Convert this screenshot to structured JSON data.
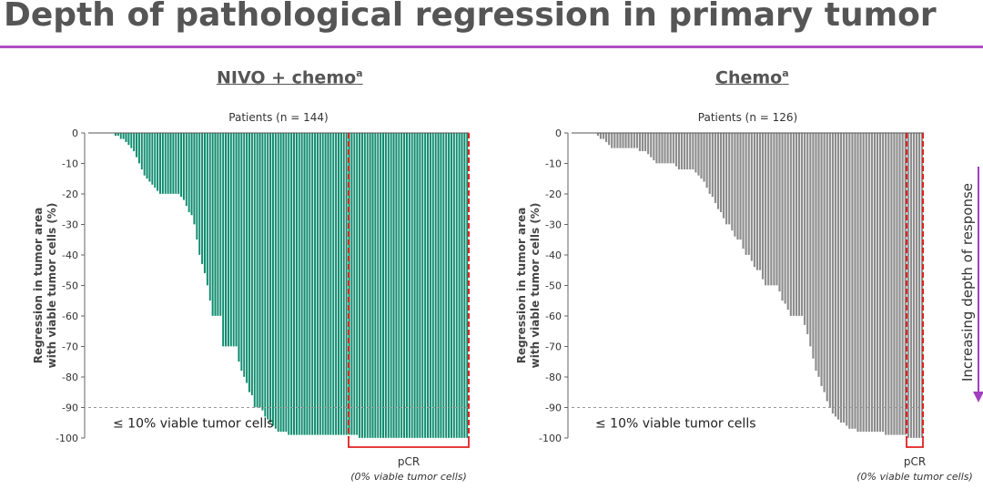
{
  "page_title": "Depth of pathological regression in primary tumor",
  "side_arrow_label": "Increasing depth of response",
  "colors": {
    "accent_rule": "#b04fc4",
    "nivo_bar": "#0e8c6e",
    "chemo_bar": "#8c8c8c",
    "pcr_box": "#e02020",
    "arrow": "#a23fbf"
  },
  "chart_data": [
    {
      "type": "bar",
      "title": "NIVO + chemo",
      "title_superscript": "a",
      "subtitle": "Patients (n = 144)",
      "ylabel_line1": "Regression in tumor area",
      "ylabel_line2": "with viable tumor cells (%)",
      "ylim": [
        -100,
        0
      ],
      "yticks": [
        0,
        -10,
        -20,
        -30,
        -40,
        -50,
        -60,
        -70,
        -80,
        -90,
        -100
      ],
      "n_patients": 144,
      "threshold_value": -90,
      "threshold_label": "≤ 10% viable tumor cells",
      "pcr_label": "pCR",
      "pcr_sublabel": "(0% viable tumor cells)",
      "pcr_start_index": 103,
      "values": [
        0,
        0,
        0,
        0,
        0,
        0,
        0,
        0,
        0,
        0,
        -1,
        -1,
        -2,
        -2,
        -3,
        -4,
        -5,
        -6,
        -8,
        -10,
        -12,
        -14,
        -15,
        -16,
        -17,
        -18,
        -19,
        -20,
        -20,
        -20,
        -20,
        -20,
        -20,
        -20,
        -20,
        -21,
        -22,
        -24,
        -26,
        -27,
        -30,
        -35,
        -40,
        -43,
        -46,
        -50,
        -55,
        -60,
        -60,
        -60,
        -60,
        -70,
        -70,
        -70,
        -70,
        -70,
        -70,
        -75,
        -78,
        -80,
        -82,
        -85,
        -86,
        -90,
        -90,
        -90,
        -91,
        -93,
        -94,
        -95,
        -96,
        -97,
        -98,
        -98,
        -98,
        -98,
        -99,
        -99,
        -99,
        -99,
        -99,
        -99,
        -99,
        -99,
        -99,
        -99,
        -99,
        -99,
        -99,
        -99,
        -99,
        -99,
        -99,
        -99,
        -99,
        -99,
        -99,
        -99,
        -99,
        -99,
        -99,
        -99,
        -99,
        -100,
        -100,
        -100,
        -100,
        -100,
        -100,
        -100,
        -100,
        -100,
        -100,
        -100,
        -100,
        -100,
        -100,
        -100,
        -100,
        -100,
        -100,
        -100,
        -100,
        -100,
        -100,
        -100,
        -100,
        -100,
        -100,
        -100,
        -100,
        -100,
        -100,
        -100,
        -100,
        -100,
        -100,
        -100,
        -100,
        -100,
        -100,
        -100,
        -100,
        -100,
        -100
      ]
    },
    {
      "type": "bar",
      "title": "Chemo",
      "title_superscript": "a",
      "subtitle": "Patients (n = 126)",
      "ylabel_line1": "Regression in tumor area",
      "ylabel_line2": "with viable tumor cells (%)",
      "ylim": [
        -100,
        0
      ],
      "yticks": [
        0,
        -10,
        -20,
        -30,
        -40,
        -50,
        -60,
        -70,
        -80,
        -90,
        -100
      ],
      "n_patients": 126,
      "threshold_value": -90,
      "threshold_label": "≤ 10% viable tumor cells",
      "pcr_label": "pCR",
      "pcr_sublabel": "(0% viable tumor cells)",
      "pcr_start_index": 120,
      "values": [
        0,
        0,
        0,
        0,
        0,
        0,
        0,
        0,
        0,
        -1,
        -2,
        -2,
        -3,
        -4,
        -5,
        -5,
        -5,
        -5,
        -5,
        -5,
        -5,
        -5,
        -5,
        -5,
        -6,
        -6,
        -6,
        -7,
        -8,
        -9,
        -10,
        -10,
        -10,
        -10,
        -10,
        -10,
        -10,
        -11,
        -12,
        -12,
        -12,
        -12,
        -12,
        -12,
        -13,
        -14,
        -15,
        -16,
        -18,
        -20,
        -21,
        -23,
        -25,
        -26,
        -28,
        -30,
        -30,
        -32,
        -34,
        -35,
        -35,
        -38,
        -40,
        -40,
        -42,
        -44,
        -45,
        -45,
        -48,
        -50,
        -50,
        -50,
        -50,
        -50,
        -52,
        -55,
        -56,
        -58,
        -60,
        -60,
        -60,
        -60,
        -60,
        -63,
        -66,
        -70,
        -74,
        -78,
        -80,
        -83,
        -85,
        -88,
        -90,
        -92,
        -93,
        -94,
        -95,
        -95,
        -96,
        -97,
        -97,
        -97,
        -98,
        -98,
        -98,
        -98,
        -98,
        -98,
        -98,
        -98,
        -98,
        -98,
        -99,
        -99,
        -99,
        -99,
        -99,
        -99,
        -99,
        -99,
        -100,
        -100,
        -100,
        -100,
        -100,
        -100
      ]
    }
  ]
}
